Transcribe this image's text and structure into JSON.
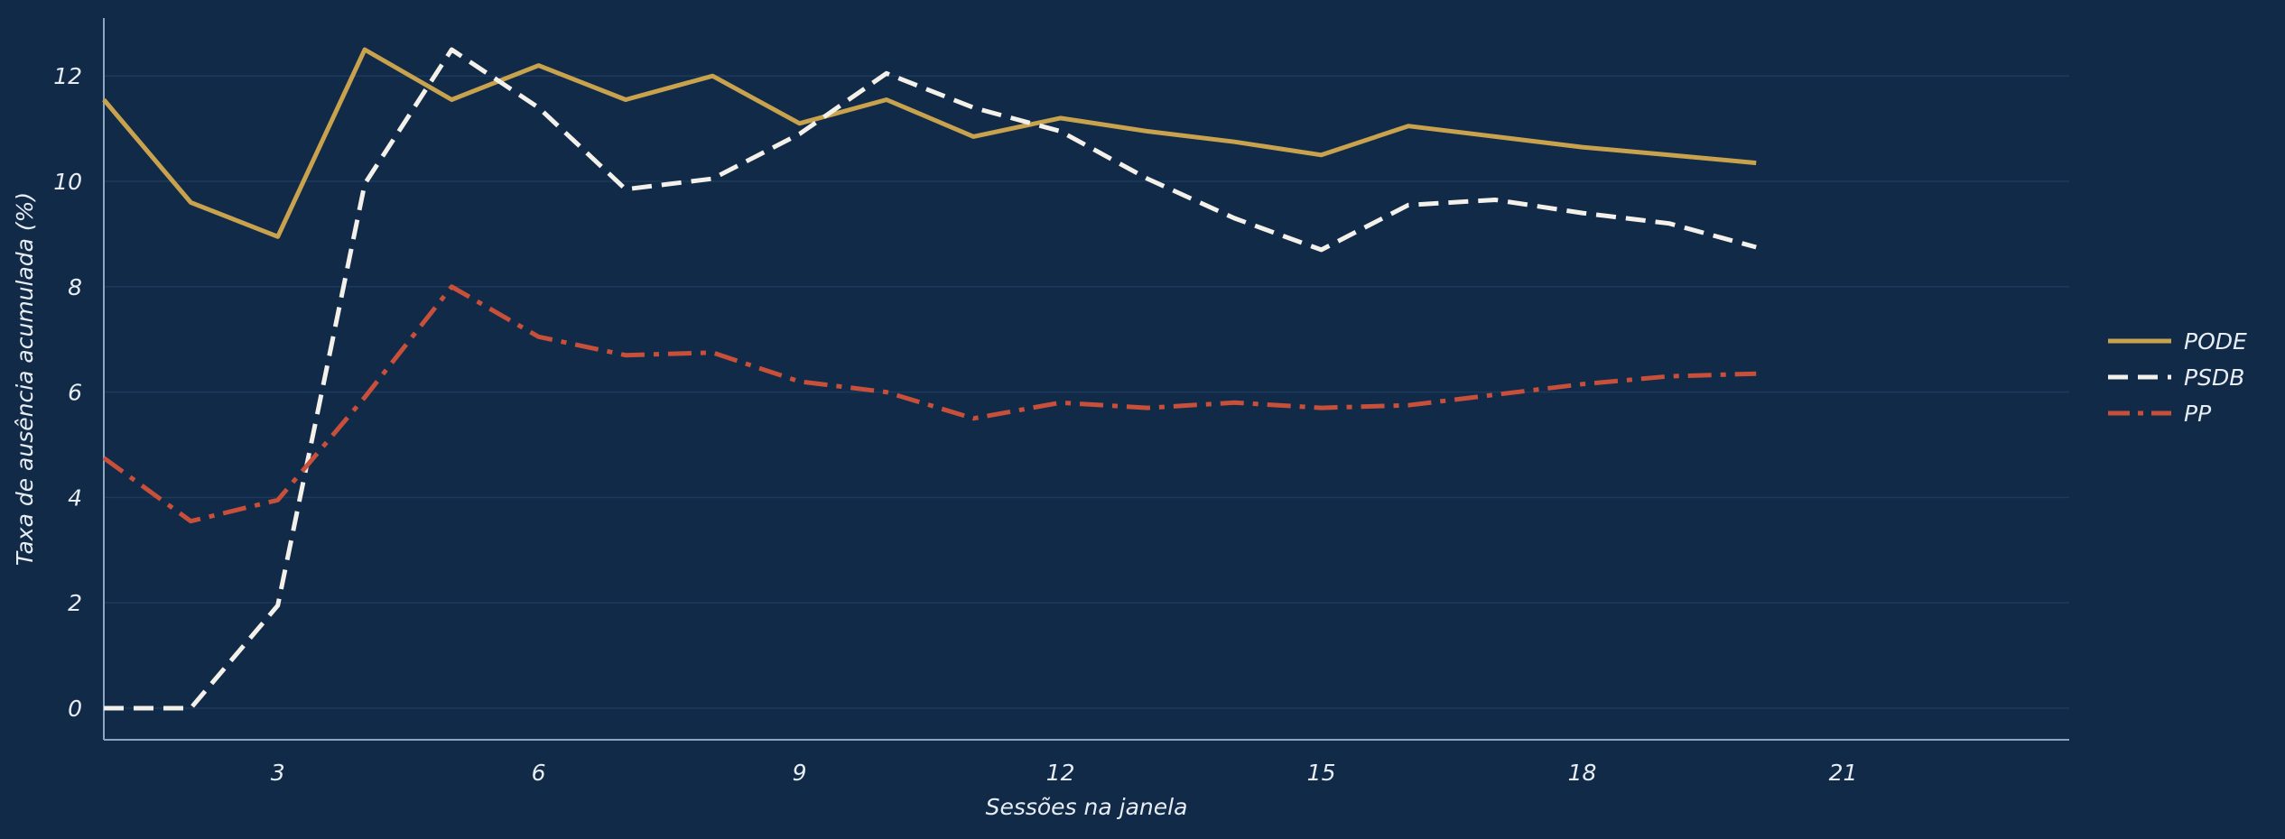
{
  "chart_data": {
    "type": "line",
    "title": "",
    "xlabel": "Sessões na janela",
    "ylabel": "Taxa de ausência acumulada (%)",
    "xlim": [
      1,
      23.6
    ],
    "ylim": [
      -0.6,
      13.1
    ],
    "xticks": [
      3,
      6,
      9,
      12,
      15,
      18,
      21
    ],
    "yticks": [
      0,
      2,
      4,
      6,
      8,
      10,
      12
    ],
    "grid": "horizontal",
    "legend_position": "right",
    "x": [
      1,
      2,
      3,
      4,
      5,
      6,
      7,
      8,
      9,
      10,
      11,
      12,
      13,
      14,
      15,
      16,
      17,
      18,
      19,
      20
    ],
    "series": [
      {
        "name": "PODE",
        "color": "#c9a24e",
        "dash": "solid",
        "values": [
          11.55,
          9.6,
          8.95,
          12.5,
          11.55,
          12.2,
          11.55,
          12.0,
          11.1,
          11.55,
          10.85,
          11.2,
          10.95,
          10.75,
          10.5,
          11.05,
          10.85,
          10.65,
          10.5,
          10.35
        ]
      },
      {
        "name": "PSDB",
        "color": "#f4f1ea",
        "dash": "dashed",
        "values": [
          0.0,
          0.0,
          1.95,
          9.95,
          12.5,
          11.4,
          9.85,
          10.05,
          10.9,
          12.05,
          11.4,
          10.95,
          10.05,
          9.3,
          8.7,
          9.55,
          9.65,
          9.4,
          9.2,
          8.75
        ]
      },
      {
        "name": "PP",
        "color": "#c8503a",
        "dash": "dashdot",
        "values": [
          4.75,
          3.55,
          3.95,
          5.9,
          8.0,
          7.05,
          6.7,
          6.75,
          6.2,
          6.0,
          5.5,
          5.8,
          5.7,
          5.8,
          5.7,
          5.75,
          5.95,
          6.15,
          6.3,
          6.35
        ]
      }
    ]
  }
}
